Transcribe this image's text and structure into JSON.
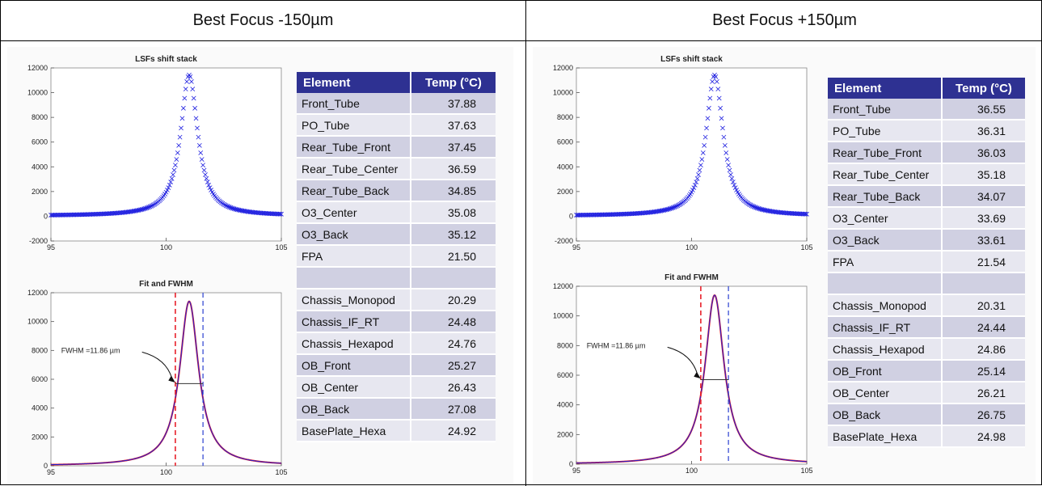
{
  "panels": [
    {
      "header": "Best Focus -150µm",
      "table": {
        "col1": "Element",
        "col2": "Temp (°C)",
        "rows": [
          {
            "element": "Front_Tube",
            "temp": "37.88"
          },
          {
            "element": "PO_Tube",
            "temp": "37.63"
          },
          {
            "element": "Rear_Tube_Front",
            "temp": "37.45"
          },
          {
            "element": "Rear_Tube_Center",
            "temp": "36.59"
          },
          {
            "element": "Rear_Tube_Back",
            "temp": "34.85"
          },
          {
            "element": "O3_Center",
            "temp": "35.08"
          },
          {
            "element": "O3_Back",
            "temp": "35.12"
          },
          {
            "element": "FPA",
            "temp": "21.50"
          },
          {
            "element": "",
            "temp": ""
          },
          {
            "element": "Chassis_Monopod",
            "temp": "20.29"
          },
          {
            "element": "Chassis_IF_RT",
            "temp": "24.48"
          },
          {
            "element": "Chassis_Hexapod",
            "temp": "24.76"
          },
          {
            "element": "OB_Front",
            "temp": "25.27"
          },
          {
            "element": "OB_Center",
            "temp": "26.43"
          },
          {
            "element": "OB_Back",
            "temp": "27.08"
          },
          {
            "element": "BasePlate_Hexa",
            "temp": "24.92"
          }
        ]
      }
    },
    {
      "header": "Best Focus +150µm",
      "table": {
        "col1": "Element",
        "col2": "Temp (°C)",
        "rows": [
          {
            "element": "Front_Tube",
            "temp": "36.55"
          },
          {
            "element": "PO_Tube",
            "temp": "36.31"
          },
          {
            "element": "Rear_Tube_Front",
            "temp": "36.03"
          },
          {
            "element": "Rear_Tube_Center",
            "temp": "35.18"
          },
          {
            "element": "Rear_Tube_Back",
            "temp": "34.07"
          },
          {
            "element": "O3_Center",
            "temp": "33.69"
          },
          {
            "element": "O3_Back",
            "temp": "33.61"
          },
          {
            "element": "FPA",
            "temp": "21.54"
          },
          {
            "element": "",
            "temp": ""
          },
          {
            "element": "Chassis_Monopod",
            "temp": "20.31"
          },
          {
            "element": "Chassis_IF_RT",
            "temp": "24.44"
          },
          {
            "element": "Chassis_Hexapod",
            "temp": "24.86"
          },
          {
            "element": "OB_Front",
            "temp": "25.14"
          },
          {
            "element": "OB_Center",
            "temp": "26.21"
          },
          {
            "element": "OB_Back",
            "temp": "26.75"
          },
          {
            "element": "BasePlate_Hexa",
            "temp": "24.98"
          }
        ]
      }
    }
  ],
  "colors": {
    "header_blue": "#2e3192",
    "lsf_marker": "#1f1fe0",
    "fit_curve_red": "#e8202a",
    "fit_curve_blue": "#2020d0",
    "left_edge_line": "#e8202a",
    "right_edge_line": "#2a3fd0"
  },
  "chart_data": [
    {
      "type": "scatter",
      "title": "LSFs shift stack",
      "marker": "x",
      "xlim": [
        95,
        105
      ],
      "ylim": [
        -2000,
        12000
      ],
      "x_ticks": [
        "95",
        "100",
        "105"
      ],
      "y_ticks": [
        "-2000",
        "0",
        "2000",
        "4000",
        "6000",
        "8000",
        "10000",
        "12000"
      ],
      "peak": {
        "x": 101,
        "y": 11400
      },
      "series": [
        {
          "values": [
            [
              96,
              100
            ],
            [
              97,
              150
            ],
            [
              98,
              220
            ],
            [
              99,
              400
            ],
            [
              99.5,
              700
            ],
            [
              100,
              1900
            ],
            [
              100.5,
              5500
            ],
            [
              101,
              11400
            ],
            [
              101.5,
              5300
            ],
            [
              102,
              2000
            ],
            [
              102.5,
              900
            ],
            [
              103,
              500
            ],
            [
              104,
              260
            ],
            [
              105,
              120
            ]
          ]
        }
      ]
    },
    {
      "type": "line",
      "title": "Fit and FWHM",
      "xlim": [
        95,
        105
      ],
      "ylim": [
        0,
        12000
      ],
      "x_ticks": [
        "95",
        "100",
        "105"
      ],
      "y_ticks": [
        "0",
        "2000",
        "4000",
        "6000",
        "8000",
        "10000",
        "12000"
      ],
      "annotation": "FWHM =11.86 µm",
      "peak": {
        "x": 101,
        "y": 11400
      },
      "half_max": 5700,
      "edges": [
        100.4,
        101.6
      ]
    },
    {
      "type": "scatter",
      "title": "LSFs shift stack",
      "marker": "x",
      "xlim": [
        95,
        105
      ],
      "ylim": [
        -2000,
        12000
      ],
      "x_ticks": [
        "95",
        "100",
        "105"
      ],
      "y_ticks": [
        "-2000",
        "0",
        "2000",
        "4000",
        "6000",
        "8000",
        "10000",
        "12000"
      ],
      "peak": {
        "x": 101,
        "y": 11400
      },
      "series": [
        {
          "values": [
            [
              96,
              100
            ],
            [
              97,
              150
            ],
            [
              98,
              220
            ],
            [
              99,
              400
            ],
            [
              99.5,
              700
            ],
            [
              100,
              1900
            ],
            [
              100.5,
              5500
            ],
            [
              101,
              11400
            ],
            [
              101.5,
              5300
            ],
            [
              102,
              2000
            ],
            [
              102.5,
              900
            ],
            [
              103,
              500
            ],
            [
              104,
              260
            ],
            [
              105,
              120
            ]
          ]
        }
      ]
    },
    {
      "type": "line",
      "title": "Fit and FWHM",
      "xlim": [
        95,
        105
      ],
      "ylim": [
        0,
        12000
      ],
      "x_ticks": [
        "95",
        "100",
        "105"
      ],
      "y_ticks": [
        "0",
        "2000",
        "4000",
        "6000",
        "8000",
        "10000",
        "12000"
      ],
      "annotation": "FWHM =11.86 µm",
      "peak": {
        "x": 101,
        "y": 11400
      },
      "half_max": 5700,
      "edges": [
        100.4,
        101.6
      ]
    }
  ]
}
